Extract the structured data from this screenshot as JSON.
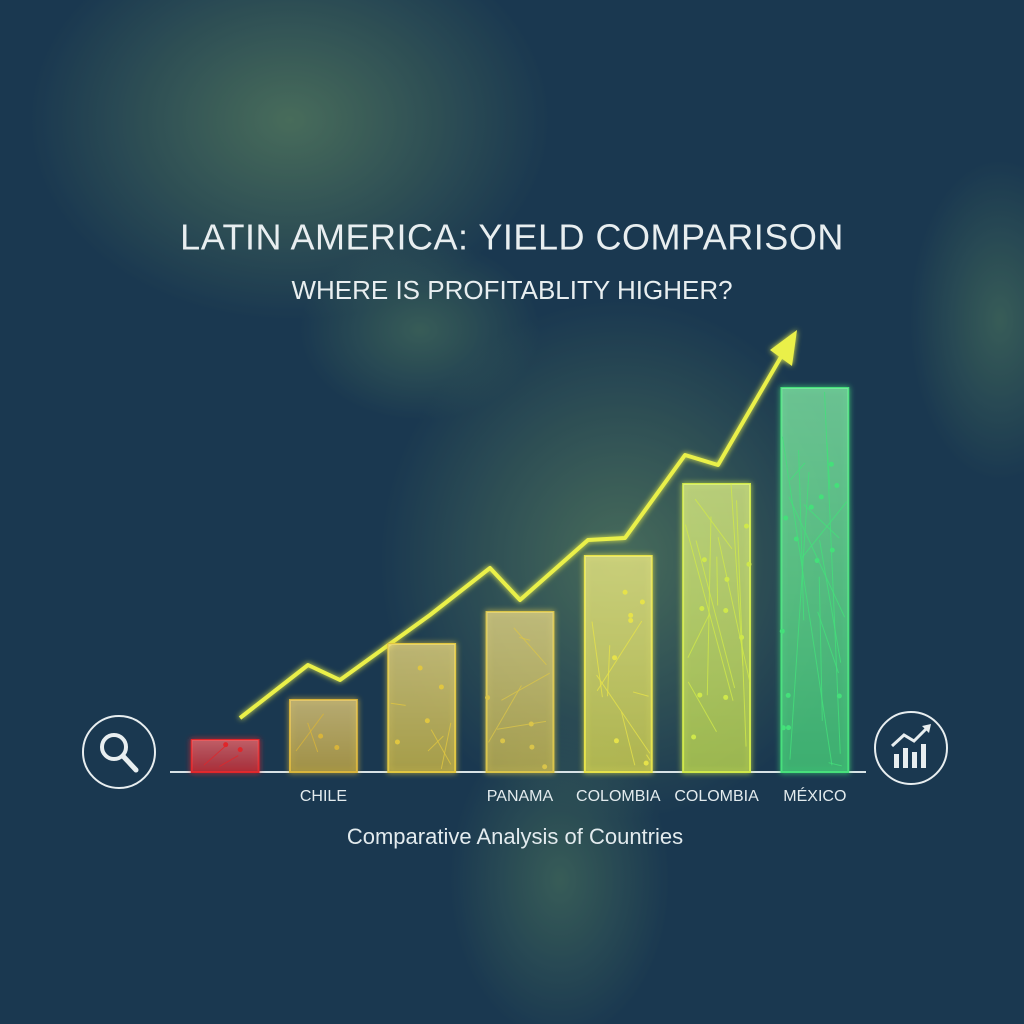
{
  "chart_data": {
    "type": "bar",
    "title": "LATIN AMERICA: YIELD COMPARISON",
    "subtitle": "WHERE IS PROFITABLITY HIGHER?",
    "x_label": "Comparative Analysis of Countries",
    "categories": [
      null,
      "CHILE",
      null,
      "PANAMA",
      "COLOMBIA",
      "COLOMBIA",
      "MÉXICO"
    ],
    "values": [
      8,
      18,
      32,
      40,
      54,
      72,
      96
    ],
    "colors": [
      "#e0262a",
      "#d8b43a",
      "#e0c640",
      "#d9c44a",
      "#e6e24a",
      "#cfe84a",
      "#44e07a"
    ],
    "ylim": [
      0,
      100
    ]
  }
}
